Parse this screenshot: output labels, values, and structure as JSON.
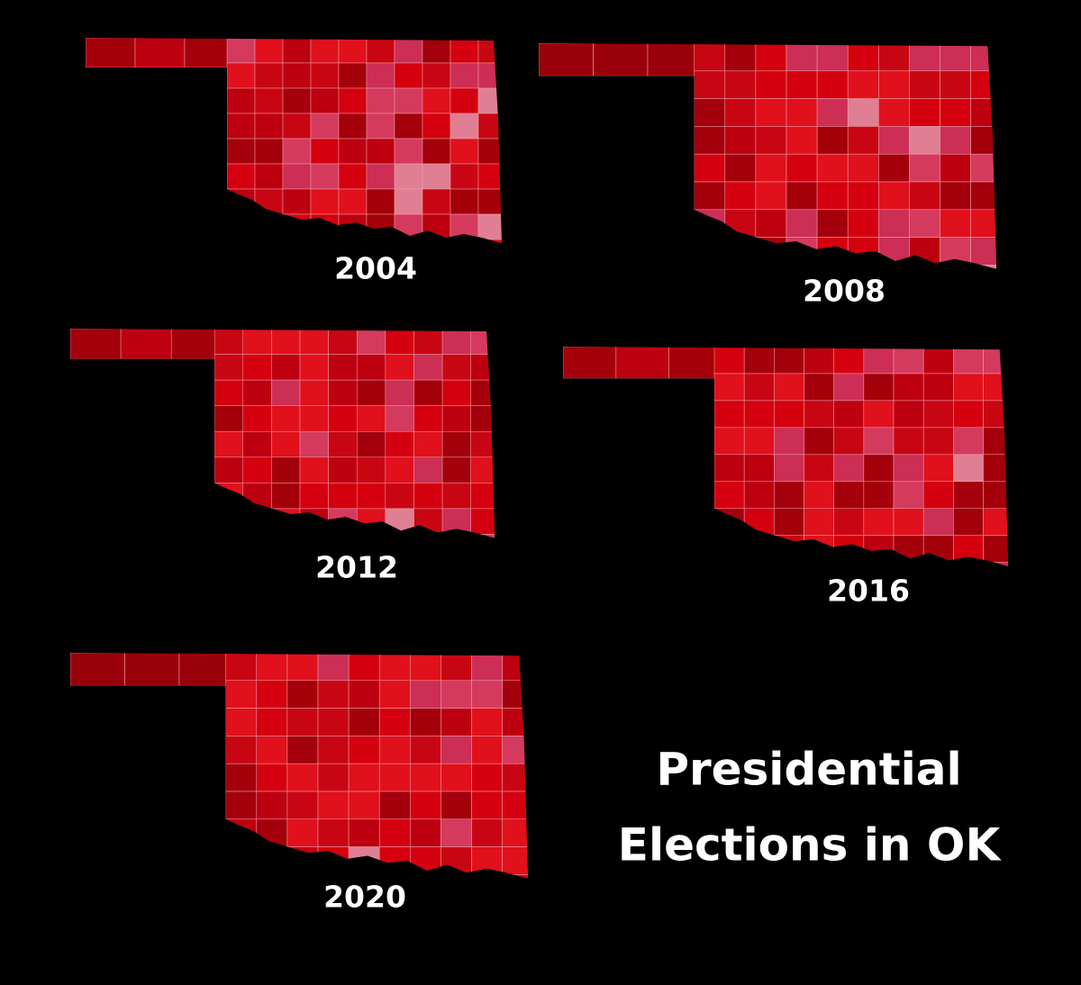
{
  "title_lines": [
    "Presidential",
    "Elections in OK"
  ],
  "maps": [
    {
      "label": "2004"
    },
    {
      "label": "2008"
    },
    {
      "label": "2012"
    },
    {
      "label": "2016"
    },
    {
      "label": "2020"
    }
  ]
}
